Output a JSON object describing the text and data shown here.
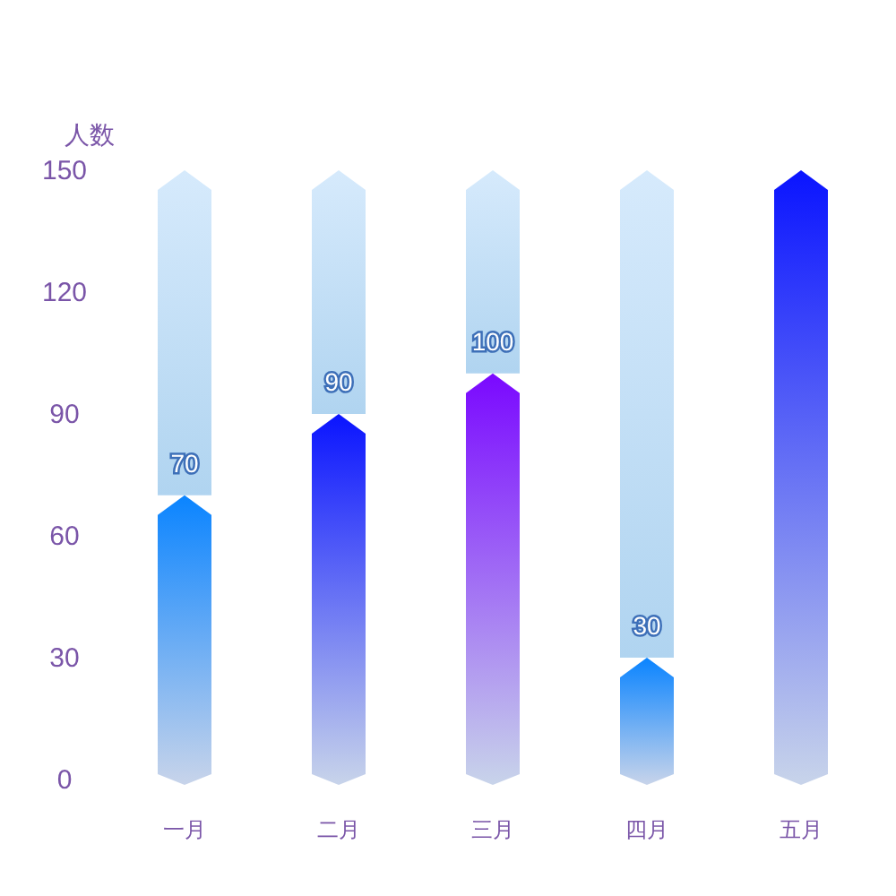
{
  "chart_data": {
    "type": "bar",
    "stacked": true,
    "ylabel": "人数",
    "categories": [
      "一月",
      "二月",
      "三月",
      "四月",
      "五月"
    ],
    "ylim": [
      0,
      150
    ],
    "yticks": [
      0,
      30,
      60,
      90,
      120,
      150
    ],
    "grid": false,
    "series": [
      {
        "colors": [
          "#0a84ff",
          "#0a14ff",
          "#7a08ff",
          "#0a84ff",
          "#0a14ff"
        ],
        "values": [
          70,
          90,
          100,
          30,
          150
        ],
        "value_labels": [
          "70",
          "90",
          "100",
          "30",
          null
        ]
      },
      {
        "color": "#d6eafc",
        "values": [
          80,
          60,
          50,
          120,
          0
        ]
      }
    ]
  }
}
